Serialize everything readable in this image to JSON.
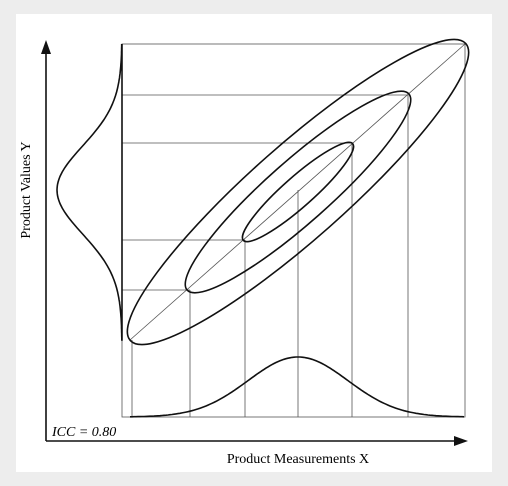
{
  "axes": {
    "y_label": "Product Values Y",
    "x_label": "Product Measurements X"
  },
  "annotation": "ICC = 0.80"
}
